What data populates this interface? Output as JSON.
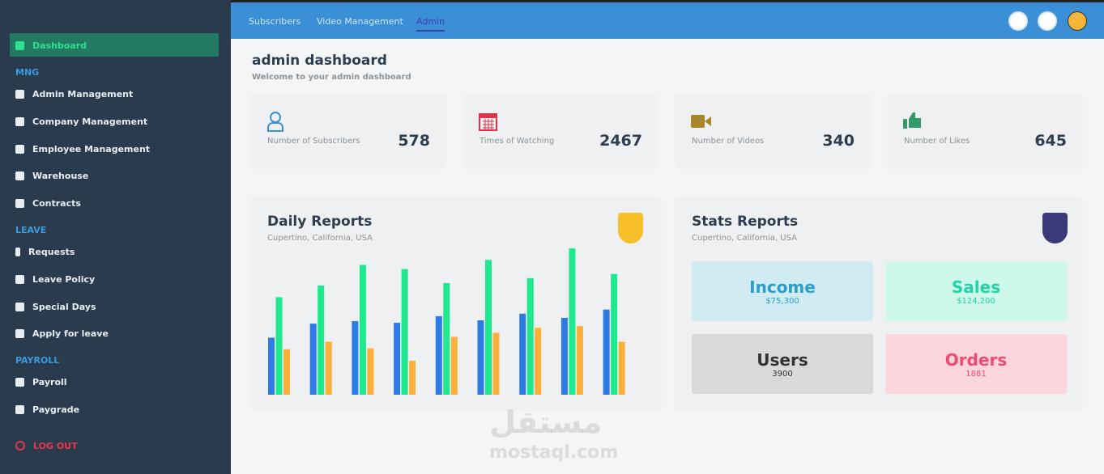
{
  "sidebar": {
    "active": "Dashboard",
    "sections": [
      {
        "title": "MNG",
        "items": [
          "Admin Management",
          "Company Management",
          "Employee Management",
          "Warehouse",
          "Contracts"
        ]
      },
      {
        "title": "LEAVE",
        "items": [
          "Requests",
          "Leave Policy",
          "Special Days",
          "Apply for leave"
        ]
      },
      {
        "title": "PAYROLL",
        "items": [
          "Payroll",
          "Paygrade"
        ]
      }
    ],
    "logout": "LOG OUT"
  },
  "topbar": {
    "links": [
      "Subscribers",
      "Video Management",
      "Admin"
    ]
  },
  "header": {
    "title": "admin dashboard",
    "subtitle": "Welcome to your admin dashboard"
  },
  "stat_cards": [
    {
      "label": "Number of Subscribers",
      "value": 578
    },
    {
      "label": "Times of Watching",
      "value": 2467
    },
    {
      "label": "Number of Videos",
      "value": 340
    },
    {
      "label": "Number of Likes",
      "value": 645
    }
  ],
  "daily_reports": {
    "title": "Daily Reports",
    "subtitle": "Cupertino, California, USA"
  },
  "stats_reports": {
    "title": "Stats Reports",
    "subtitle": "Cupertino, California, USA",
    "tiles": [
      {
        "label": "Income",
        "value": "$75,300"
      },
      {
        "label": "Sales",
        "value": "$124,200"
      },
      {
        "label": "Users",
        "value": "3900"
      },
      {
        "label": "Orders",
        "value": "1881"
      }
    ]
  },
  "chart_data": {
    "type": "bar",
    "categories": [
      null,
      null,
      null,
      null,
      null,
      null,
      null,
      null,
      null
    ],
    "ylim": [
      0,
      180
    ],
    "series": [
      {
        "color": "#2f7be5",
        "values": [
          69,
          86,
          89,
          87,
          95,
          90,
          98,
          93,
          103
        ]
      },
      {
        "color": "#1ee98f",
        "values": [
          118,
          132,
          157,
          152,
          135,
          163,
          141,
          177,
          146
        ]
      },
      {
        "color": "#fbb03b",
        "values": [
          55,
          64,
          56,
          41,
          70,
          75,
          81,
          83,
          64
        ]
      }
    ]
  },
  "watermark": {
    "arabic": "مستقل",
    "latin": "mostaql.com"
  }
}
